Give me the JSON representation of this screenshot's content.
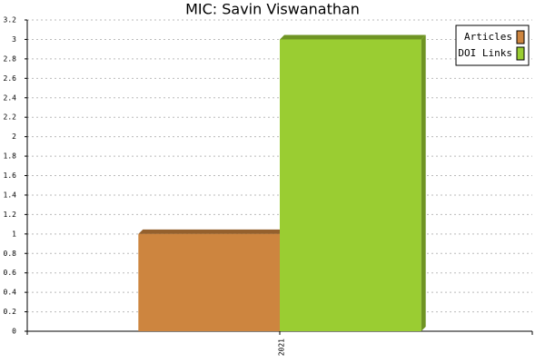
{
  "chart_data": {
    "type": "bar",
    "title": "MIC: Savin Viswanathan",
    "categories": [
      "2021"
    ],
    "series": [
      {
        "name": "Articles",
        "color": "#cd853f",
        "values": [
          1
        ]
      },
      {
        "name": "DOI Links",
        "color": "#9acd32",
        "values": [
          3
        ]
      }
    ],
    "ylim": [
      0,
      3.2
    ],
    "yticks": [
      0,
      0.2,
      0.4,
      0.6,
      0.8,
      1,
      1.2,
      1.4,
      1.6,
      1.8,
      2,
      2.2,
      2.4,
      2.6,
      2.8,
      3,
      3.2
    ],
    "grid": true,
    "legend": "top-right"
  }
}
